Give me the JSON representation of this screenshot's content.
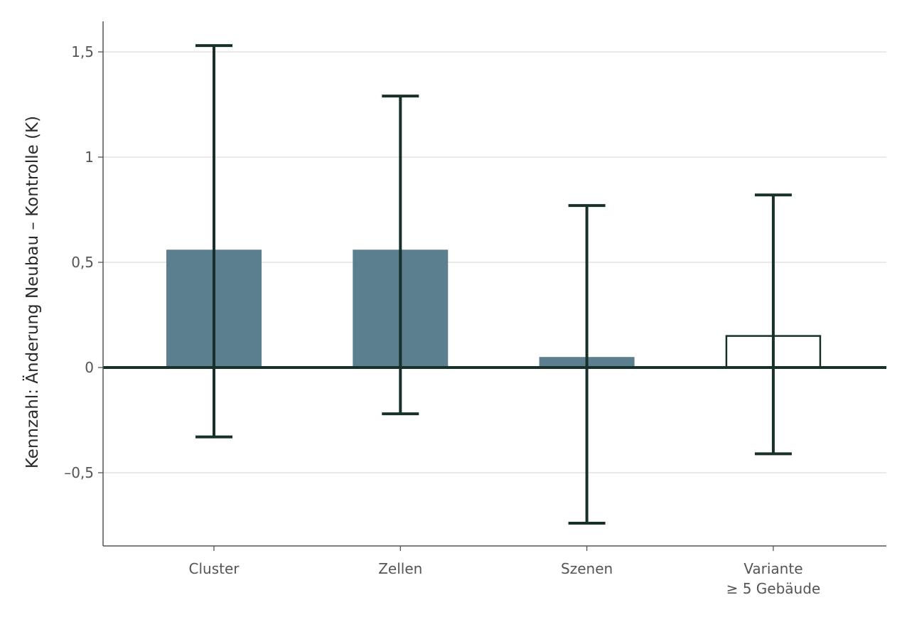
{
  "chart_data": {
    "type": "bar",
    "title": "",
    "xlabel": "",
    "ylabel": "Kennzahl: Änderung Neubau – Kontrolle (K)",
    "ylim": [
      -0.85,
      1.65
    ],
    "yticks": [
      {
        "value": -0.5,
        "label": "–0,5"
      },
      {
        "value": 0,
        "label": "0"
      },
      {
        "value": 0.5,
        "label": "0,5"
      },
      {
        "value": 1,
        "label": "1"
      },
      {
        "value": 1.5,
        "label": "1,5"
      }
    ],
    "grid": true,
    "legend": "none",
    "categories": [
      {
        "lines": [
          "Cluster"
        ]
      },
      {
        "lines": [
          "Zellen"
        ]
      },
      {
        "lines": [
          "Szenen"
        ]
      },
      {
        "lines": [
          "Variante",
          "≥ 5 Gebäude"
        ]
      }
    ],
    "values": [
      0.56,
      0.56,
      0.05,
      0.15
    ],
    "error_low": [
      -0.33,
      -0.22,
      -0.74,
      -0.41
    ],
    "error_high": [
      1.53,
      1.29,
      0.77,
      0.82
    ],
    "bar_style": [
      "filled",
      "filled",
      "filled",
      "outline"
    ],
    "colors": {
      "bar_fill": "#5b7f8e",
      "error_bar": "#17302a",
      "zero_line": "#17302a",
      "grid": "#dcdcdc",
      "axis": "#555555"
    }
  }
}
